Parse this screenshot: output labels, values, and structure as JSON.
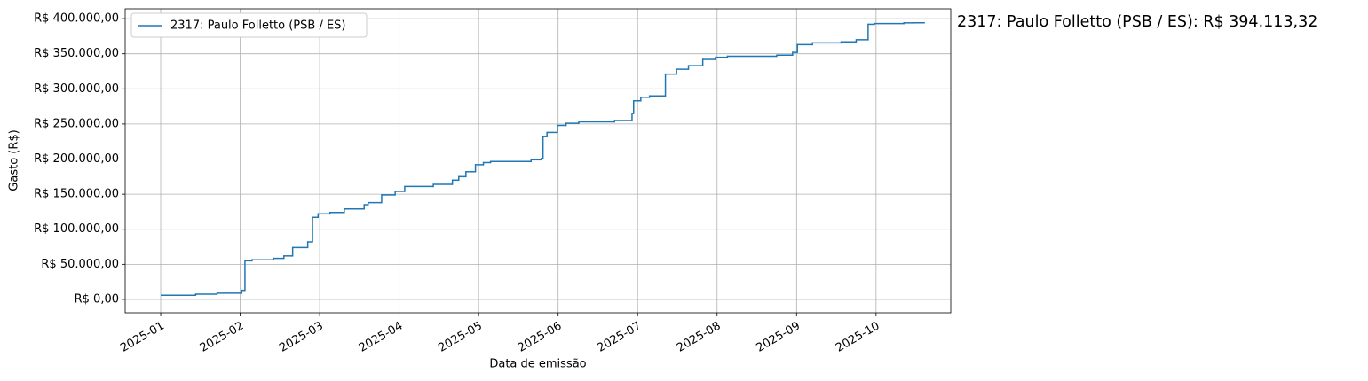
{
  "chart_data": {
    "type": "line",
    "step": true,
    "annotation": "2317: Paulo Folletto (PSB / ES): R$ 394.113,32",
    "x_label": "Data de emissão",
    "y_label": "Gasto (R$)",
    "legend": "upper left",
    "grid": true,
    "x": [
      1.0,
      1.44,
      1.71,
      2.02,
      2.06,
      2.15,
      2.42,
      2.55,
      2.66,
      2.85,
      2.91,
      2.98,
      3.13,
      3.31,
      3.56,
      3.61,
      3.78,
      3.95,
      4.07,
      4.43,
      4.67,
      4.75,
      4.84,
      4.96,
      5.06,
      5.15,
      5.66,
      5.79,
      5.81,
      5.86,
      5.99,
      6.1,
      6.26,
      6.71,
      6.93,
      6.95,
      7.04,
      7.15,
      7.35,
      7.49,
      7.64,
      7.82,
      7.98,
      8.13,
      8.75,
      8.95,
      9.01,
      9.2,
      9.56,
      9.75,
      9.9,
      9.98,
      10.35,
      10.48
    ],
    "series": [
      {
        "name": "2317: Paulo Folletto (PSB / ES)",
        "color": "#1f77b4",
        "values": [
          6000,
          7500,
          9000,
          13000,
          55000,
          56500,
          58500,
          62000,
          74000,
          82000,
          117000,
          122000,
          124000,
          129000,
          135000,
          138000,
          149000,
          154000,
          161000,
          164000,
          170000,
          175000,
          182000,
          192000,
          195000,
          196500,
          199000,
          201000,
          232000,
          238000,
          248000,
          251000,
          253000,
          255000,
          265000,
          283000,
          288000,
          290000,
          321000,
          328000,
          333000,
          342000,
          345000,
          346500,
          348000,
          352000,
          363000,
          365500,
          367000,
          370000,
          392000,
          393000,
          394000,
          394113.32
        ]
      }
    ],
    "xlim": [
      0.553,
      10.94
    ],
    "xticks": [
      {
        "value": 1,
        "label": "2025-01"
      },
      {
        "value": 2,
        "label": "2025-02"
      },
      {
        "value": 3,
        "label": "2025-03"
      },
      {
        "value": 4,
        "label": "2025-04"
      },
      {
        "value": 5,
        "label": "2025-05"
      },
      {
        "value": 6,
        "label": "2025-06"
      },
      {
        "value": 7,
        "label": "2025-07"
      },
      {
        "value": 8,
        "label": "2025-08"
      },
      {
        "value": 9,
        "label": "2025-09"
      },
      {
        "value": 10,
        "label": "2025-10"
      }
    ],
    "ylim": [
      -19000,
      414000
    ],
    "yticks": [
      {
        "value": 0,
        "label": "R$ 0,00"
      },
      {
        "value": 50000,
        "label": "R$ 50.000,00"
      },
      {
        "value": 100000,
        "label": "R$ 100.000,00"
      },
      {
        "value": 150000,
        "label": "R$ 150.000,00"
      },
      {
        "value": 200000,
        "label": "R$ 200.000,00"
      },
      {
        "value": 250000,
        "label": "R$ 250.000,00"
      },
      {
        "value": 300000,
        "label": "R$ 300.000,00"
      },
      {
        "value": 350000,
        "label": "R$ 350.000,00"
      },
      {
        "value": 400000,
        "label": "R$ 400.000,00"
      }
    ]
  }
}
